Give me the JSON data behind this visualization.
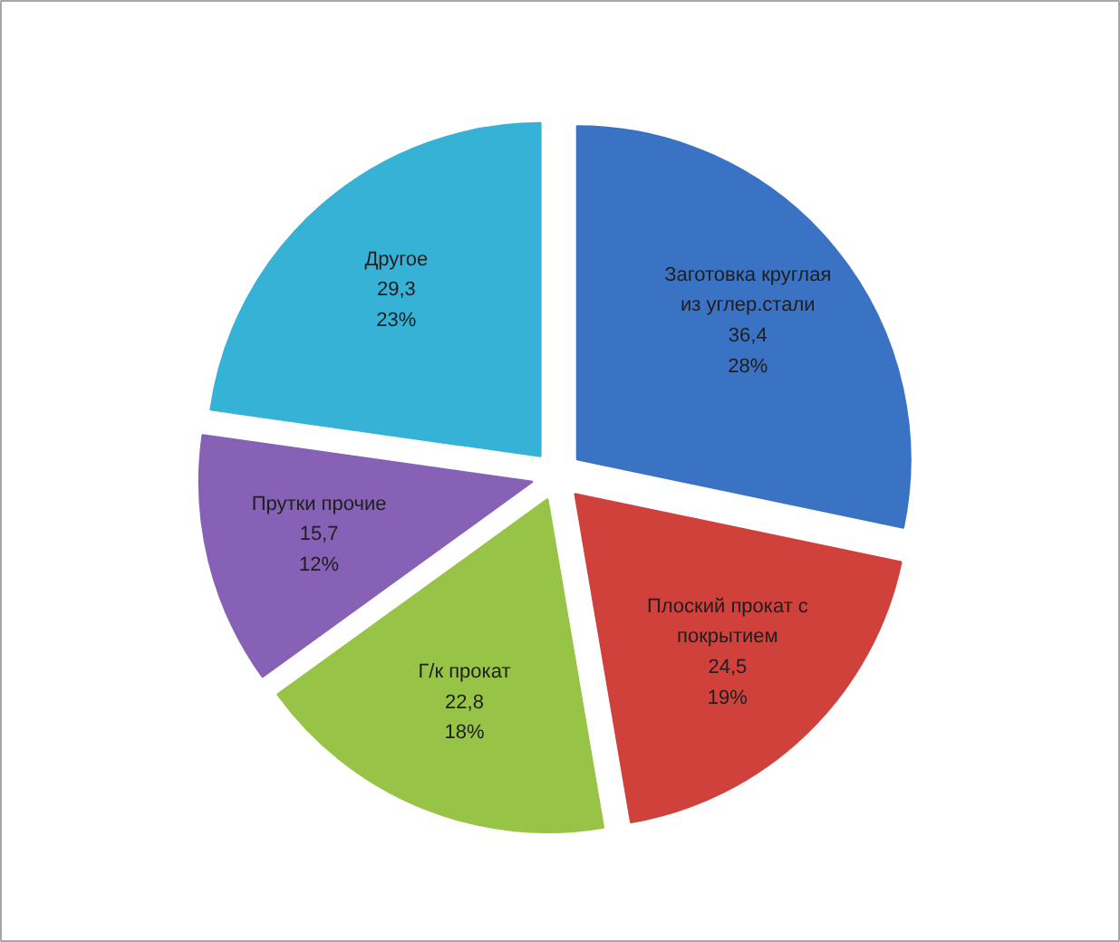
{
  "chart_data": {
    "type": "pie",
    "categories": [
      "Заготовка круглая из углер.стали",
      "Плоский прокат с покрытием",
      "Г/к прокат",
      "Прутки прочие",
      "Другое"
    ],
    "values": [
      36.4,
      24.5,
      22.8,
      15.7,
      29.3
    ],
    "colors": [
      "#3a72c4",
      "#d0413c",
      "#97c447",
      "#8661b5",
      "#36b2d6"
    ],
    "value_labels": [
      "36,4\n28%",
      "24,5\n19%",
      "22,8\n18%",
      "15,7\n12%",
      "29,3\n23%"
    ]
  }
}
